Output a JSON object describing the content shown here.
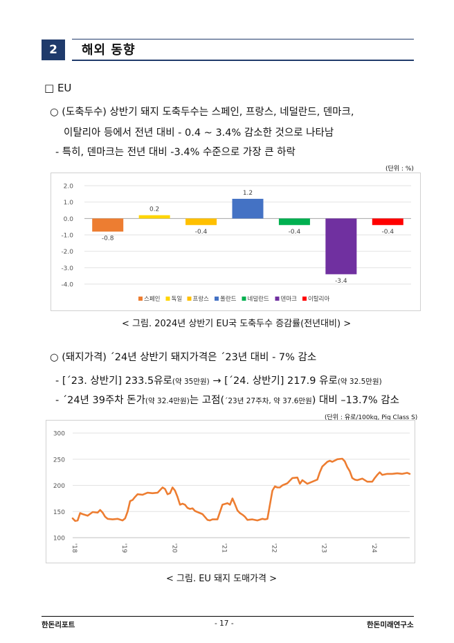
{
  "section": {
    "number": "2",
    "title": "해외 동향"
  },
  "eu_heading": "□ EU",
  "para1": {
    "line1": "○ (도축두수) 상반기 돼지 도축두수는 스페인, 프랑스, 네덜란드, 덴마크,",
    "line2": "이탈리아 등에서 전년 대비 - 0.4 ~ 3.4% 감소한 것으로 나타남",
    "bullet": "- 특히, 덴마크는 전년 대비 -3.4% 수준으로 가장 큰 하락"
  },
  "chart1_unit": "(단위 : %)",
  "chart1_caption": "< 그림. 2024년 상반기 EU국 도축두수 증감률(전년대비) >",
  "para2": {
    "line1": "○ (돼지가격) ´24년 상반기 돼지가격은 ´23년 대비 - 7% 감소",
    "bullet1a": "- [´23. 상반기] 233.5유로",
    "bullet1b": "(약 35만원)",
    "bullet1c": " → [´24. 상반기] 217.9 유로",
    "bullet1d": "(약 32.5만원)",
    "bullet2a": "- ´24년 39주차 돈가",
    "bullet2b": "(약 32.4만원)",
    "bullet2c": "는 고점(",
    "bullet2d": "´23년 27주차, 약 37.6만원",
    "bullet2e": ") 대비 –13.7% 감소"
  },
  "chart2_unit": "(단위 : 유로/100kg, Pig Class S)",
  "chart2_caption": "< 그림. EU 돼지 도매가격 >",
  "footer": {
    "left": "한돈리포트",
    "center": "- 17 -",
    "right": "한돈미래연구소"
  },
  "chart_data": [
    {
      "type": "bar",
      "categories": [
        "스페인",
        "독일",
        "프랑스",
        "폴란드",
        "네덜란드",
        "덴마크",
        "이탈리아"
      ],
      "values": [
        -0.8,
        0.2,
        -0.4,
        1.2,
        -0.4,
        -3.4,
        -0.4
      ],
      "value_labels": [
        "-0.8",
        "0.2",
        "-0.4",
        "1.2",
        "-0.4",
        "-3.4",
        "-0.4"
      ],
      "colors": [
        "#ed7d31",
        "#ffd500",
        "#ffc000",
        "#4472c4",
        "#00b050",
        "#7030a0",
        "#ff0000"
      ],
      "yticks": [
        "2.0",
        "1.0",
        "0.0",
        "-1.0",
        "-2.0",
        "-3.0",
        "-4.0"
      ],
      "ylim": [
        -4,
        2
      ],
      "grid": true,
      "legend": "bottom",
      "title": "",
      "xlabel": "",
      "ylabel": ""
    },
    {
      "type": "line",
      "x_ticks": [
        "'18",
        "'19",
        "'20",
        "'21",
        "'22",
        "'23",
        "'24"
      ],
      "yticks": [
        "300",
        "250",
        "200",
        "150",
        "100"
      ],
      "ylim": [
        100,
        300
      ],
      "xlim": [
        2018.0,
        2024.75
      ],
      "color": "#ed7d31",
      "grid": true,
      "legend": "none",
      "title": "",
      "xlabel": "",
      "ylabel": "",
      "x": [
        2018.0,
        2018.05,
        2018.1,
        2018.15,
        2018.2,
        2018.3,
        2018.4,
        2018.5,
        2018.55,
        2018.6,
        2018.65,
        2018.7,
        2018.8,
        2018.9,
        2019.0,
        2019.05,
        2019.1,
        2019.15,
        2019.2,
        2019.25,
        2019.3,
        2019.4,
        2019.5,
        2019.6,
        2019.7,
        2019.8,
        2019.85,
        2019.9,
        2019.95,
        2020.0,
        2020.05,
        2020.1,
        2020.15,
        2020.2,
        2020.25,
        2020.3,
        2020.35,
        2020.4,
        2020.45,
        2020.5,
        2020.6,
        2020.7,
        2020.75,
        2020.8,
        2020.9,
        2021.0,
        2021.1,
        2021.15,
        2021.2,
        2021.25,
        2021.3,
        2021.35,
        2021.4,
        2021.45,
        2021.5,
        2021.6,
        2021.7,
        2021.8,
        2021.85,
        2021.9,
        2022.0,
        2022.05,
        2022.1,
        2022.15,
        2022.2,
        2022.3,
        2022.4,
        2022.5,
        2022.55,
        2022.6,
        2022.7,
        2022.8,
        2022.9,
        2022.95,
        2023.0,
        2023.1,
        2023.15,
        2023.2,
        2023.3,
        2023.4,
        2023.45,
        2023.5,
        2023.55,
        2023.6,
        2023.65,
        2023.7,
        2023.8,
        2023.9,
        2024.0,
        2024.05,
        2024.1,
        2024.15,
        2024.2,
        2024.3,
        2024.4,
        2024.5,
        2024.6,
        2024.7,
        2024.75
      ],
      "y": [
        137,
        132,
        133,
        147,
        145,
        142,
        149,
        148,
        153,
        148,
        140,
        136,
        135,
        136,
        133,
        137,
        150,
        170,
        172,
        178,
        183,
        182,
        186,
        185,
        186,
        196,
        193,
        183,
        185,
        196,
        190,
        178,
        163,
        165,
        163,
        157,
        155,
        156,
        151,
        149,
        145,
        134,
        133,
        135,
        135,
        163,
        166,
        163,
        175,
        164,
        152,
        147,
        144,
        140,
        134,
        135,
        133,
        136,
        135,
        136,
        190,
        198,
        196,
        196,
        200,
        204,
        214,
        215,
        203,
        210,
        203,
        207,
        211,
        225,
        236,
        245,
        247,
        245,
        250,
        251,
        246,
        235,
        227,
        214,
        211,
        210,
        213,
        207,
        207,
        214,
        220,
        225,
        220,
        222,
        222,
        223,
        222,
        224,
        222
      ]
    }
  ]
}
